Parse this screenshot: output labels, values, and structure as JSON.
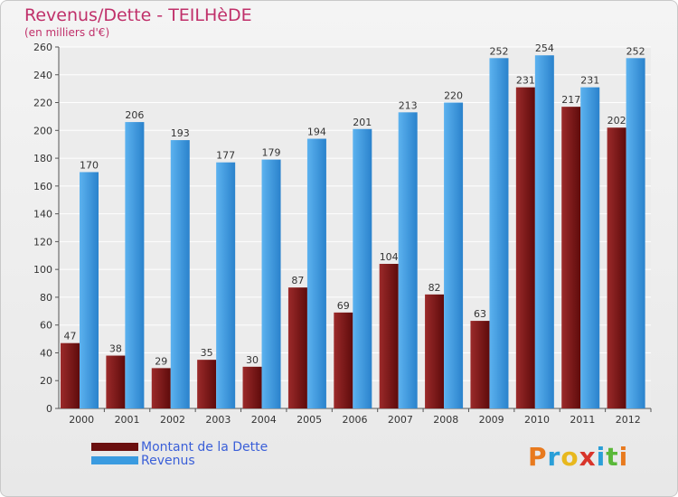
{
  "header": {
    "title": "Revenus/Dette - TEILHèDE",
    "subtitle": "(en milliers d'€)"
  },
  "chart_data": {
    "type": "bar",
    "categories": [
      "2000",
      "2001",
      "2002",
      "2003",
      "2004",
      "2005",
      "2006",
      "2007",
      "2008",
      "2009",
      "2010",
      "2011",
      "2012"
    ],
    "series": [
      {
        "name": "Montant de la Dette",
        "color": "#7a1414",
        "values": [
          47,
          38,
          29,
          35,
          30,
          87,
          69,
          104,
          82,
          63,
          231,
          217,
          202
        ]
      },
      {
        "name": "Revenus",
        "color": "#3a9be0",
        "values": [
          170,
          206,
          193,
          177,
          179,
          194,
          201,
          213,
          220,
          252,
          254,
          231,
          252
        ]
      }
    ],
    "ylim": [
      0,
      260
    ],
    "yticks": [
      0,
      20,
      40,
      60,
      80,
      100,
      120,
      140,
      160,
      180,
      200,
      220,
      240,
      260
    ],
    "grid": true,
    "legend_position": "bottom-left"
  },
  "legend": {
    "items": [
      {
        "label": "Montant de la Dette",
        "color": "#6b0f0f"
      },
      {
        "label": "Revenus",
        "color": "#3a9be0"
      }
    ]
  },
  "logo": {
    "letters": [
      "P",
      "r",
      "o",
      "x",
      "i",
      "t",
      "i"
    ],
    "colors": [
      "#e87a1e",
      "#2a9fd8",
      "#e8b81e",
      "#d8342a",
      "#2a9fd8",
      "#5ab83a",
      "#e87a1e"
    ]
  }
}
